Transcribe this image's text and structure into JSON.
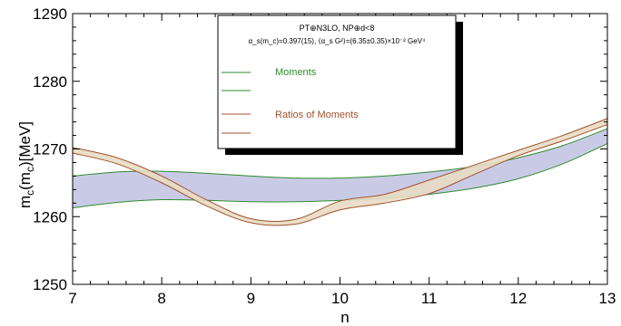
{
  "chart_data": {
    "type": "area",
    "xlabel": "n",
    "ylabel_main": "m",
    "ylabel_sub1": "c",
    "ylabel_mid": "(m",
    "ylabel_sub2": "c",
    "ylabel_tail": ")[MeV]",
    "xlim": [
      7,
      13
    ],
    "ylim": [
      1250,
      1290
    ],
    "x_ticks": [
      "7",
      "8",
      "9",
      "10",
      "11",
      "12",
      "13"
    ],
    "y_ticks": [
      "1250",
      "1260",
      "1270",
      "1280",
      "1290"
    ],
    "grid": false,
    "legend_placement": "top-center",
    "legend": {
      "line1": "PT⊕N3LO, NP⊕d<8",
      "line2": "α_s(m_c)=0.397(15), ⟨α_s G²⟩=(6.35±0.35)×10⁻² GeV⁴",
      "entries": [
        "Moments",
        "Ratios of Moments"
      ]
    },
    "series": [
      {
        "name": "Moments",
        "color": "#2e8b2e",
        "fill": "#c9cbe6",
        "x": [
          7,
          7.5,
          8,
          8.5,
          9,
          9.5,
          10,
          10.5,
          11,
          11.5,
          12,
          12.5,
          13
        ],
        "upper": [
          1266.0,
          1266.6,
          1266.7,
          1266.4,
          1266.0,
          1265.7,
          1265.7,
          1266.0,
          1266.6,
          1267.4,
          1268.7,
          1270.5,
          1273.0
        ],
        "lower": [
          1261.3,
          1262.1,
          1262.5,
          1262.4,
          1262.2,
          1262.2,
          1262.4,
          1262.7,
          1263.3,
          1264.2,
          1265.6,
          1267.8,
          1270.8
        ]
      },
      {
        "name": "Ratios of Moments",
        "color": "#a0522d",
        "fill": "#e8dcc4",
        "x": [
          7,
          7.5,
          8,
          8.5,
          9,
          9.5,
          10,
          10.5,
          11,
          11.5,
          12,
          12.5,
          13
        ],
        "upper": [
          1270.2,
          1268.7,
          1266.0,
          1262.5,
          1259.7,
          1259.6,
          1262.3,
          1263.3,
          1265.4,
          1267.6,
          1269.8,
          1272.0,
          1274.5
        ],
        "lower": [
          1269.4,
          1267.8,
          1265.0,
          1261.6,
          1259.1,
          1258.9,
          1261.0,
          1262.0,
          1263.4,
          1266.2,
          1269.0,
          1271.2,
          1273.6
        ]
      }
    ]
  }
}
